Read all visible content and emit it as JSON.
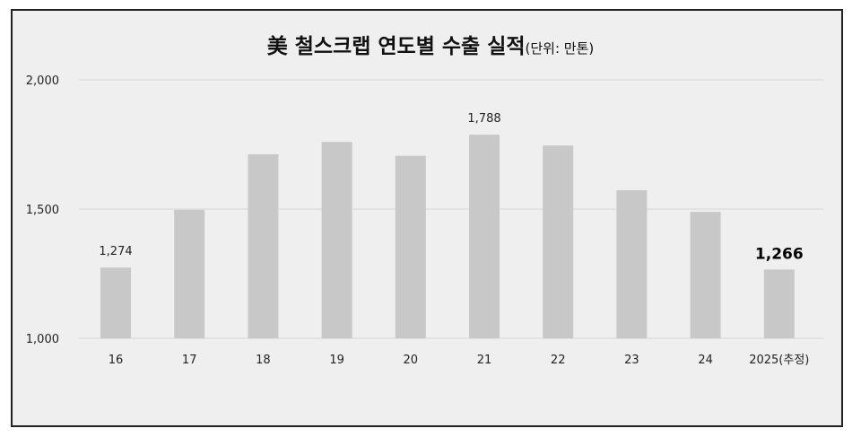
{
  "chart_data": {
    "type": "bar",
    "title": "美 철스크랩 연도별 수출 실적",
    "subtitle": "(단위: 만톤)",
    "categories": [
      "16",
      "17",
      "18",
      "19",
      "20",
      "21",
      "22",
      "23",
      "24",
      "2025(추정)"
    ],
    "values": [
      1274,
      1497,
      1712,
      1760,
      1706,
      1788,
      1746,
      1573,
      1489,
      1266
    ],
    "data_labels": [
      {
        "index": 0,
        "text": "1,274",
        "emphasis": false
      },
      {
        "index": 5,
        "text": "1,788",
        "emphasis": false
      },
      {
        "index": 9,
        "text": "1,266",
        "emphasis": true
      }
    ],
    "y_ticks": [
      {
        "value": 1000,
        "label": "1,000"
      },
      {
        "value": 1500,
        "label": "1,500"
      },
      {
        "value": 2000,
        "label": "2,000"
      }
    ],
    "ylim": [
      1000,
      2000
    ],
    "xlabel": "",
    "ylabel": "",
    "grid": true,
    "legend": "none",
    "colors": {
      "bar": "#c8c8c8",
      "grid": "#d6d6d6",
      "background": "#efefef",
      "border": "#222222"
    }
  }
}
